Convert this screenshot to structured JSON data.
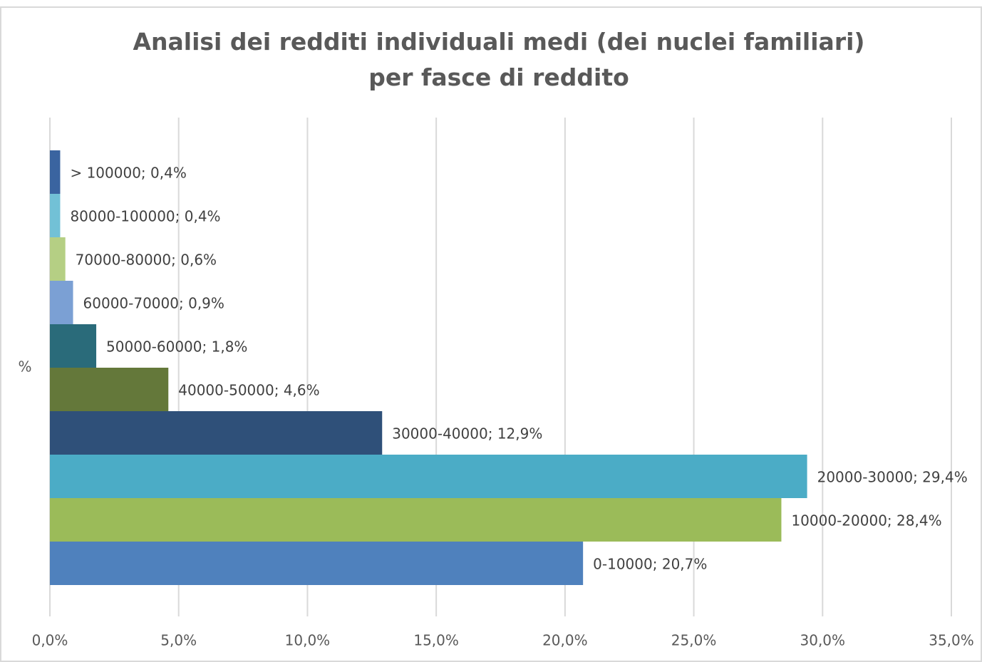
{
  "chart_data": {
    "type": "bar",
    "orientation": "horizontal",
    "title": "Analisi dei redditi individuali medi (dei nuclei familiari) per fasce di reddito",
    "categories": [
      "%"
    ],
    "data_label_separator": "; ",
    "series": [
      {
        "name": "0-10000",
        "color": "#4f81bd",
        "values": [
          20.7
        ],
        "value_labels": [
          "20,7%"
        ]
      },
      {
        "name": "10000-20000",
        "color": "#9bbb59",
        "values": [
          28.4
        ],
        "value_labels": [
          "28,4%"
        ]
      },
      {
        "name": "20000-30000",
        "color": "#4bacc6",
        "values": [
          29.4
        ],
        "value_labels": [
          "29,4%"
        ]
      },
      {
        "name": "30000-40000",
        "color": "#2f5079",
        "values": [
          12.9
        ],
        "value_labels": [
          "12,9%"
        ]
      },
      {
        "name": "40000-50000",
        "color": "#64783a",
        "values": [
          4.6
        ],
        "value_labels": [
          "4,6%"
        ]
      },
      {
        "name": "50000-60000",
        "color": "#2a6b7a",
        "values": [
          1.8
        ],
        "value_labels": [
          "1,8%"
        ]
      },
      {
        "name": "60000-70000",
        "color": "#7ba0d4",
        "values": [
          0.9
        ],
        "value_labels": [
          "0,9%"
        ]
      },
      {
        "name": "70000-80000",
        "color": "#b5cf84",
        "values": [
          0.6
        ],
        "value_labels": [
          "0,6%"
        ]
      },
      {
        "name": "80000-100000",
        "color": "#72c1d6",
        "values": [
          0.4
        ],
        "value_labels": [
          "0,4%"
        ]
      },
      {
        "name": "> 100000",
        "color": "#3a64a0",
        "values": [
          0.4
        ],
        "value_labels": [
          "0,4%"
        ]
      }
    ],
    "xlim": [
      0,
      35
    ],
    "xticks": [
      {
        "value": 0,
        "label": "0,0%"
      },
      {
        "value": 5,
        "label": "5,0%"
      },
      {
        "value": 10,
        "label": "10,0%"
      },
      {
        "value": 15,
        "label": "15,0%"
      },
      {
        "value": 20,
        "label": "20,0%"
      },
      {
        "value": 25,
        "label": "25,0%"
      },
      {
        "value": 30,
        "label": "30,0%"
      },
      {
        "value": 35,
        "label": "35,0%"
      }
    ],
    "grid": true
  }
}
